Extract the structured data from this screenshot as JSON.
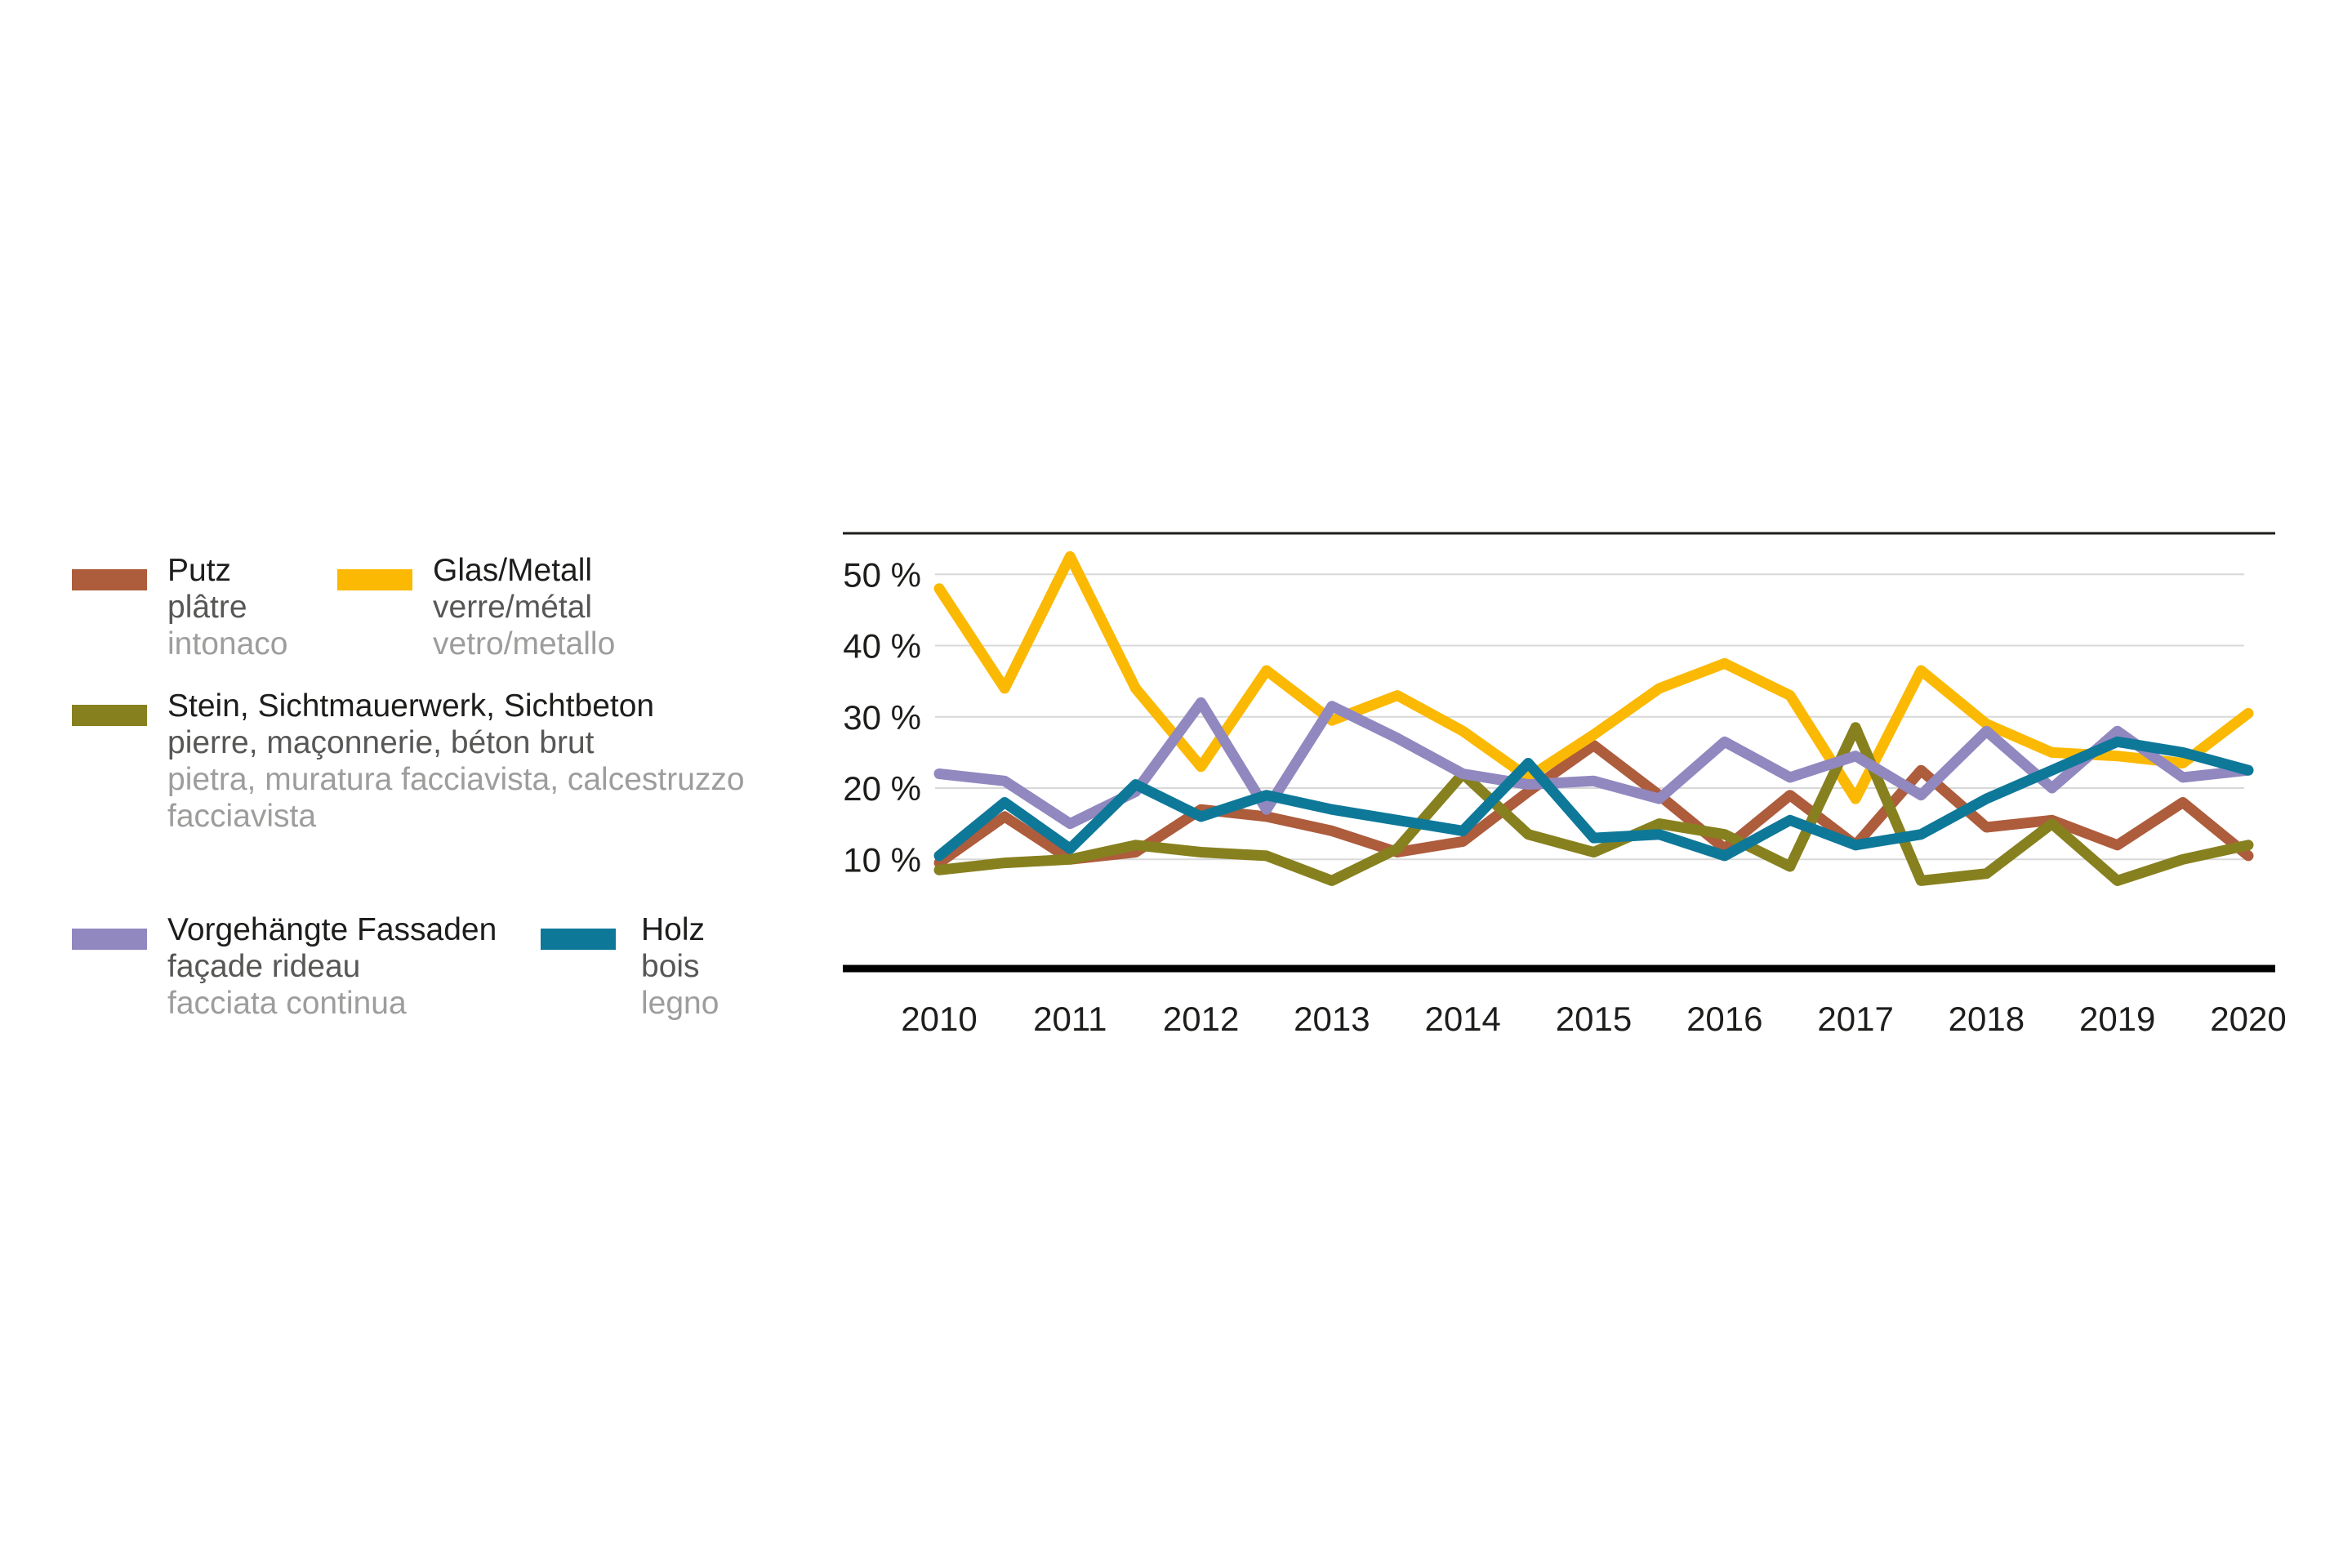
{
  "legend": {
    "items": [
      {
        "key": "putz",
        "color": "#ad5c3c",
        "label": "Putz",
        "label_fr": "plâtre",
        "label_it": "intonaco"
      },
      {
        "key": "glas",
        "color": "#fbb904",
        "label": "Glas/Metall",
        "label_fr": "verre/métal",
        "label_it": "vetro/metallo"
      },
      {
        "key": "stein",
        "color": "#87801f",
        "label": "Stein, Sichtmauerwerk, Sichtbeton",
        "label_fr": "pierre, maçonnerie, béton brut",
        "label_it": "pietra, muratura facciavista, calcestruzzo facciavista"
      },
      {
        "key": "vorg",
        "color": "#9188bf",
        "label": "Vorgehängte Fassaden",
        "label_fr": "façade rideau",
        "label_it": "facciata continua"
      },
      {
        "key": "holz",
        "color": "#0e7899",
        "label": "Holz",
        "label_fr": "bois",
        "label_it": "legno"
      }
    ]
  },
  "chart_data": {
    "type": "line",
    "x": [
      2010,
      2010.5,
      2011,
      2011.5,
      2012,
      2012.5,
      2013,
      2013.5,
      2014,
      2014.5,
      2015,
      2015.5,
      2016,
      2016.5,
      2017,
      2017.5,
      2018,
      2018.5,
      2019,
      2019.5,
      2020
    ],
    "x_tick_labels": [
      "2010",
      "2011",
      "2012",
      "2013",
      "2014",
      "2015",
      "2016",
      "2017",
      "2018",
      "2019",
      "2020"
    ],
    "y_ticks": [
      50,
      40,
      30,
      20,
      10
    ],
    "y_tick_labels": [
      "50 %",
      "40 %",
      "30 %",
      "20 %",
      "10 %"
    ],
    "ylim": [
      0,
      56
    ],
    "grid": true,
    "legend_position": "left",
    "unit": "percent",
    "series": [
      {
        "key": "putz",
        "name": "Putz",
        "color": "#ad5c3c",
        "values": [
          9.5,
          16,
          10,
          11,
          17,
          16,
          14,
          11,
          12.5,
          19.5,
          26,
          19,
          11.5,
          19,
          12,
          22.5,
          14.5,
          15.5,
          12,
          18,
          10.5
        ]
      },
      {
        "key": "glas",
        "name": "Glas/Metall",
        "color": "#fbb904",
        "values": [
          48,
          34,
          52.5,
          34,
          23,
          36.5,
          29.5,
          33,
          28,
          21.5,
          27.5,
          34,
          37.5,
          33,
          18.5,
          36.5,
          29,
          25,
          24.5,
          23.5,
          30.5
        ]
      },
      {
        "key": "stein",
        "name": "Stein, Sichtmauerwerk, Sichtbeton",
        "color": "#87801f",
        "values": [
          8.5,
          9.5,
          10,
          12,
          11,
          10.5,
          7,
          11.5,
          22,
          13.5,
          11,
          15,
          13.5,
          9,
          28.5,
          7,
          8,
          15,
          7,
          10,
          12
        ]
      },
      {
        "key": "vorg",
        "name": "Vorgehängte Fassaden",
        "color": "#9188bf",
        "values": [
          22,
          21,
          15,
          19.5,
          32,
          17,
          31.5,
          27,
          22,
          20.5,
          21,
          18.5,
          26.5,
          21.5,
          24.5,
          19,
          28,
          20,
          28,
          21.5,
          22.5
        ]
      },
      {
        "key": "holz",
        "name": "Holz",
        "color": "#0e7899",
        "values": [
          10.5,
          18,
          11.5,
          20.5,
          16,
          19,
          17,
          15.5,
          14,
          23.5,
          13,
          13.5,
          10.5,
          15.5,
          12,
          13.5,
          18.5,
          22.5,
          26.5,
          25,
          22.5
        ]
      }
    ]
  }
}
